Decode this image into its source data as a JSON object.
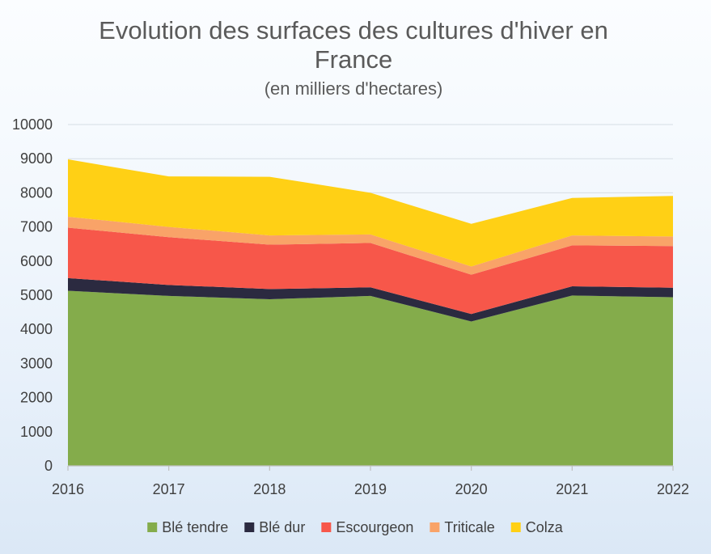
{
  "chart_data": {
    "type": "area",
    "stacked": true,
    "title_line1": "Evolution des surfaces des cultures d'hiver en",
    "title_line2": "France",
    "subtitle": "(en milliers d'hectares)",
    "x": [
      "2016",
      "2017",
      "2018",
      "2019",
      "2020",
      "2021",
      "2022"
    ],
    "y_ticks": [
      "0",
      "1000",
      "2000",
      "3000",
      "4000",
      "5000",
      "6000",
      "7000",
      "8000",
      "9000",
      "10000"
    ],
    "ylim": [
      0,
      10000
    ],
    "grid": true,
    "legend_position": "bottom",
    "series": [
      {
        "name": "Blé tendre",
        "color": "#84ac4b",
        "values": [
          5130,
          4980,
          4880,
          4980,
          4230,
          4990,
          4940
        ]
      },
      {
        "name": "Blé dur",
        "color": "#2b2a40",
        "values": [
          370,
          320,
          300,
          250,
          220,
          270,
          280
        ]
      },
      {
        "name": "Escourgeon",
        "color": "#f7574a",
        "values": [
          1480,
          1400,
          1300,
          1300,
          1150,
          1200,
          1220
        ]
      },
      {
        "name": "Triticale",
        "color": "#f9a368",
        "values": [
          320,
          300,
          270,
          250,
          240,
          290,
          280
        ]
      },
      {
        "name": "Colza",
        "color": "#ffd015",
        "values": [
          1680,
          1480,
          1720,
          1220,
          1250,
          1100,
          1190
        ]
      }
    ]
  }
}
